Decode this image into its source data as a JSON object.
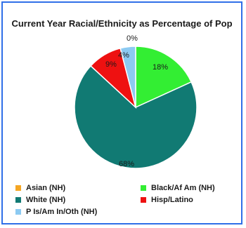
{
  "chart_data": {
    "type": "pie",
    "title": "Current Year Racial/Ethnicity as Percentage of Pop",
    "slices": [
      {
        "name": "Asian (NH)",
        "value": 0,
        "label": "0%",
        "color": "#f5a623"
      },
      {
        "name": "Black/Af Am (NH)",
        "value": 18,
        "label": "18%",
        "color": "#33ee33"
      },
      {
        "name": "White (NH)",
        "value": 68,
        "label": "68%",
        "color": "#117a73"
      },
      {
        "name": "Hisp/Latino",
        "value": 9,
        "label": "9%",
        "color": "#ee1111"
      },
      {
        "name": "P Is/Am In/Oth (NH)",
        "value": 4,
        "label": "4%",
        "color": "#8ccaf2"
      }
    ],
    "legend_position": "bottom"
  }
}
